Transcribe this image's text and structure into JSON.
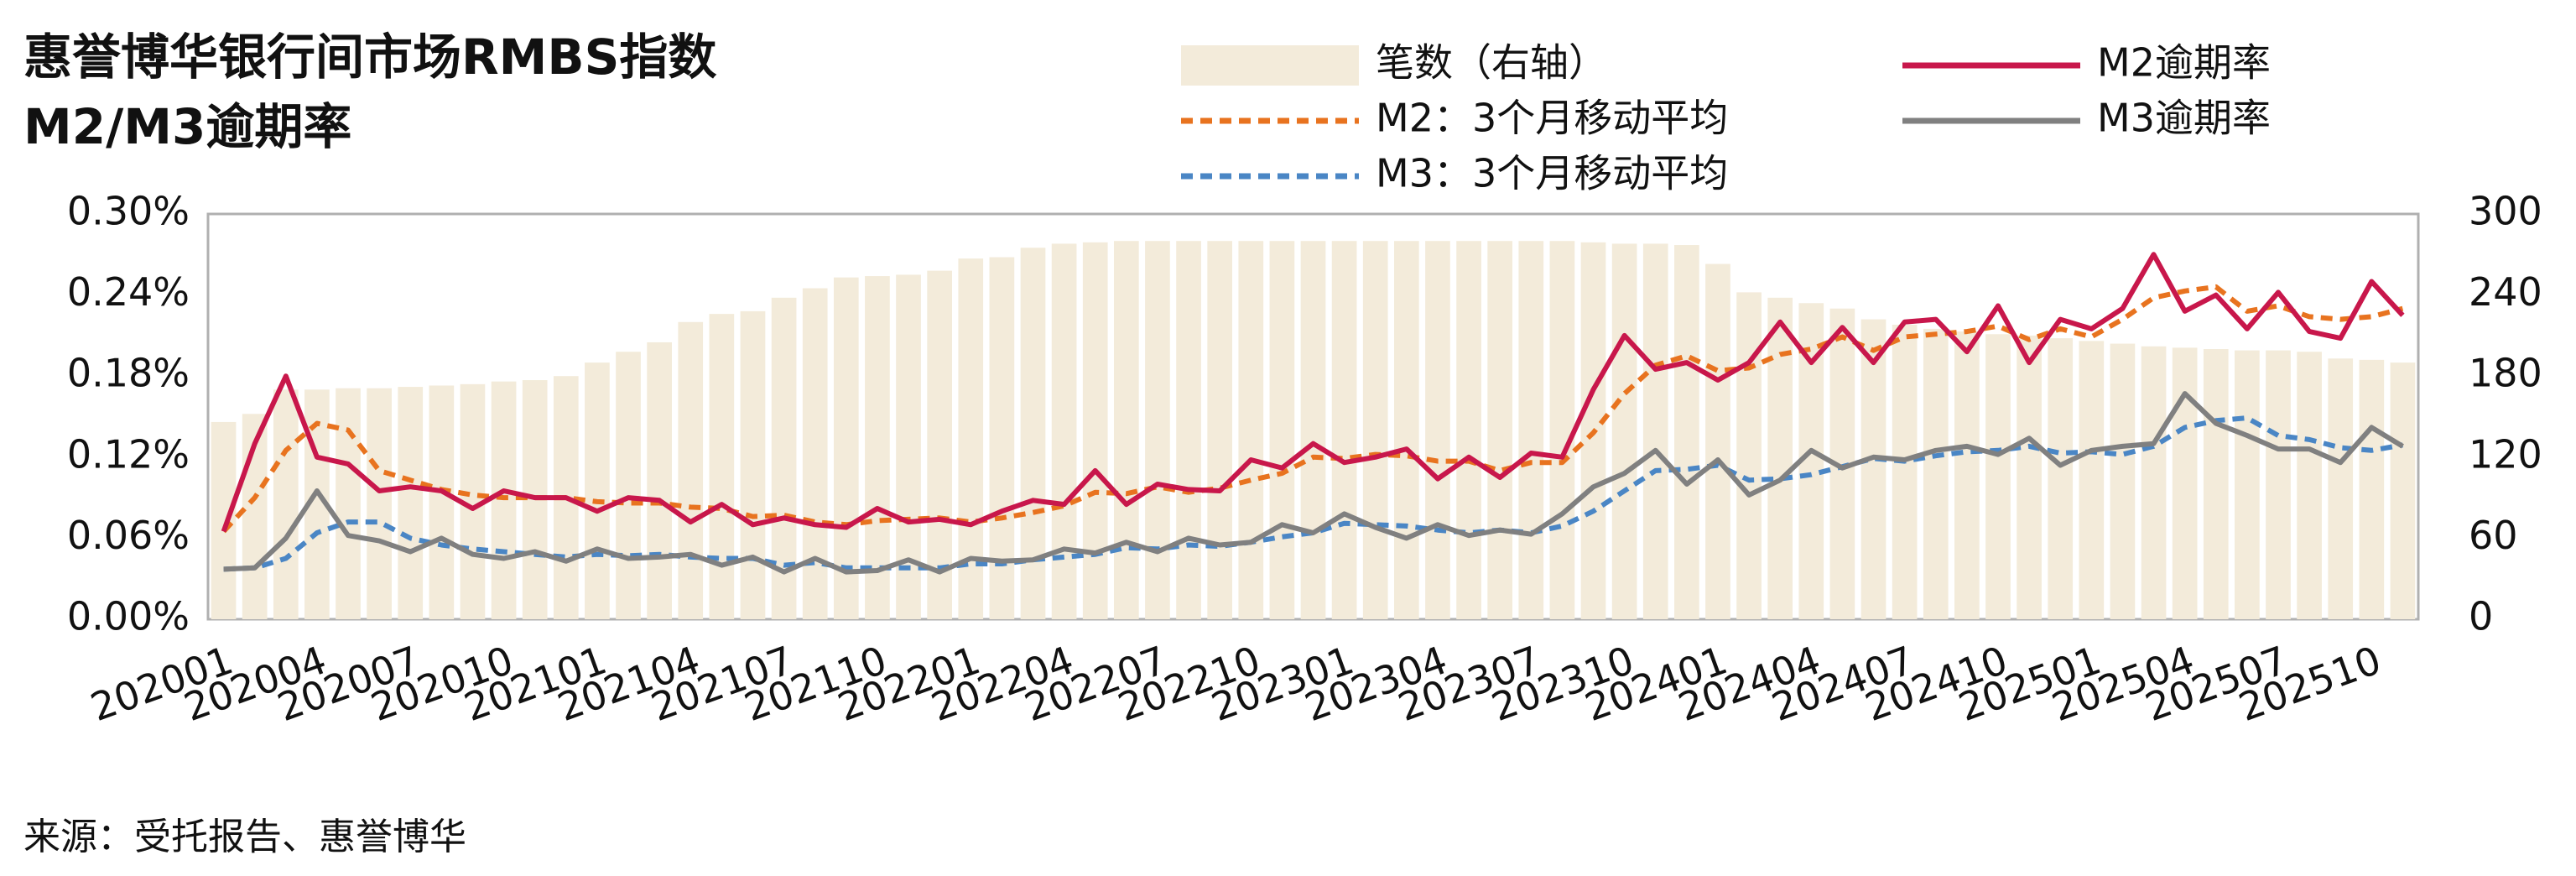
{
  "chart_data": {
    "type": "bar",
    "title": "惠誉博华银行间市场RMBS指数",
    "subtitle": "M2/M3逾期率",
    "source": "来源：受托报告、惠誉博华",
    "categories": [
      "202001",
      null,
      null,
      "202004",
      null,
      null,
      "202007",
      null,
      null,
      "202010",
      null,
      null,
      "202101",
      null,
      null,
      "202104",
      null,
      null,
      "202107",
      null,
      null,
      "202110",
      null,
      null,
      "202201",
      null,
      null,
      "202204",
      null,
      null,
      "202207",
      null,
      null,
      "202210",
      null,
      null,
      "202301",
      null,
      null,
      "202304",
      null,
      null,
      "202307",
      null,
      null,
      "202310",
      null,
      null,
      "202401",
      null,
      null,
      "202404",
      null,
      null,
      "202407",
      null,
      null,
      "202410",
      null,
      null,
      "202501",
      null,
      null,
      "202504",
      null,
      null,
      "202507",
      null,
      null,
      "202510",
      null
    ],
    "series": [
      {
        "name": "笔数（右轴）",
        "type": "bar",
        "axis": "y2",
        "color": "#f3ebda",
        "values": [
          146,
          152,
          170,
          170,
          171,
          171,
          172,
          173,
          174,
          176,
          177,
          180,
          190,
          198,
          205,
          220,
          226,
          228,
          238,
          245,
          253,
          254,
          255,
          258,
          267,
          268,
          275,
          278,
          279,
          280,
          280,
          280,
          280,
          280,
          280,
          280,
          280,
          280,
          280,
          280,
          280,
          280,
          280,
          280,
          279,
          278,
          278,
          277,
          263,
          242,
          238,
          234,
          230,
          222,
          218,
          215,
          213,
          211,
          210,
          208,
          206,
          204,
          202,
          201,
          200,
          199,
          199,
          198,
          193,
          192,
          190
        ]
      },
      {
        "name": "M2：3个月移动平均",
        "type": "line",
        "dash": true,
        "color": "#e8731f",
        "values": [
          0.065,
          0.09,
          0.125,
          0.145,
          0.14,
          0.11,
          0.103,
          0.096,
          0.092,
          0.09,
          0.09,
          0.09,
          0.087,
          0.086,
          0.086,
          0.083,
          0.082,
          0.076,
          0.077,
          0.072,
          0.07,
          0.073,
          0.074,
          0.075,
          0.072,
          0.075,
          0.079,
          0.084,
          0.094,
          0.093,
          0.098,
          0.094,
          0.097,
          0.103,
          0.108,
          0.12,
          0.119,
          0.122,
          0.121,
          0.117,
          0.117,
          0.11,
          0.116,
          0.116,
          0.138,
          0.167,
          0.188,
          0.195,
          0.184,
          0.186,
          0.196,
          0.2,
          0.209,
          0.199,
          0.209,
          0.211,
          0.213,
          0.217,
          0.207,
          0.215,
          0.209,
          0.222,
          0.238,
          0.243,
          0.246,
          0.228,
          0.232,
          0.224,
          0.222,
          0.224,
          0.23
        ]
      },
      {
        "name": "M3：3个月移动平均",
        "type": "line",
        "dash": true,
        "color": "#4a86c5",
        "values": [
          0.037,
          0.038,
          0.045,
          0.064,
          0.072,
          0.072,
          0.06,
          0.055,
          0.052,
          0.05,
          0.048,
          0.046,
          0.048,
          0.047,
          0.048,
          0.046,
          0.045,
          0.045,
          0.04,
          0.042,
          0.038,
          0.038,
          0.038,
          0.038,
          0.041,
          0.041,
          0.044,
          0.046,
          0.048,
          0.053,
          0.052,
          0.055,
          0.054,
          0.057,
          0.061,
          0.064,
          0.071,
          0.07,
          0.069,
          0.066,
          0.064,
          0.066,
          0.064,
          0.069,
          0.08,
          0.095,
          0.11,
          0.111,
          0.114,
          0.103,
          0.104,
          0.107,
          0.113,
          0.119,
          0.117,
          0.121,
          0.124,
          0.125,
          0.128,
          0.123,
          0.124,
          0.122,
          0.128,
          0.142,
          0.147,
          0.149,
          0.136,
          0.133,
          0.127,
          0.125,
          0.129
        ]
      },
      {
        "name": "M2逾期率",
        "type": "line",
        "color": "#c8174b",
        "values": [
          0.065,
          0.13,
          0.18,
          0.12,
          0.115,
          0.095,
          0.098,
          0.095,
          0.082,
          0.095,
          0.09,
          0.09,
          0.08,
          0.09,
          0.088,
          0.072,
          0.085,
          0.07,
          0.075,
          0.07,
          0.068,
          0.082,
          0.072,
          0.074,
          0.07,
          0.08,
          0.088,
          0.085,
          0.11,
          0.085,
          0.1,
          0.096,
          0.095,
          0.118,
          0.112,
          0.13,
          0.116,
          0.12,
          0.126,
          0.104,
          0.12,
          0.105,
          0.123,
          0.12,
          0.17,
          0.21,
          0.185,
          0.19,
          0.177,
          0.19,
          0.22,
          0.19,
          0.216,
          0.19,
          0.22,
          0.222,
          0.198,
          0.232,
          0.19,
          0.222,
          0.215,
          0.23,
          0.27,
          0.228,
          0.24,
          0.215,
          0.242,
          0.213,
          0.208,
          0.25,
          0.225
        ]
      },
      {
        "name": "M3逾期率",
        "type": "line",
        "color": "#808080",
        "values": [
          0.037,
          0.038,
          0.06,
          0.095,
          0.062,
          0.058,
          0.05,
          0.06,
          0.048,
          0.045,
          0.05,
          0.043,
          0.052,
          0.045,
          0.046,
          0.048,
          0.04,
          0.046,
          0.035,
          0.045,
          0.035,
          0.036,
          0.044,
          0.035,
          0.045,
          0.043,
          0.044,
          0.052,
          0.049,
          0.057,
          0.05,
          0.06,
          0.055,
          0.057,
          0.07,
          0.064,
          0.078,
          0.068,
          0.06,
          0.07,
          0.062,
          0.066,
          0.063,
          0.078,
          0.098,
          0.108,
          0.125,
          0.1,
          0.118,
          0.092,
          0.103,
          0.125,
          0.112,
          0.12,
          0.118,
          0.125,
          0.128,
          0.122,
          0.134,
          0.114,
          0.125,
          0.128,
          0.13,
          0.167,
          0.145,
          0.136,
          0.126,
          0.126,
          0.116,
          0.142,
          0.128
        ]
      }
    ],
    "ylim": [
      0,
      0.3
    ],
    "yticks": [
      {
        "value": 0,
        "label": "0.00%"
      },
      {
        "value": 0.06,
        "label": "0.06%"
      },
      {
        "value": 0.12,
        "label": "0.12%"
      },
      {
        "value": 0.18,
        "label": "0.18%"
      },
      {
        "value": 0.24,
        "label": "0.24%"
      },
      {
        "value": 0.3,
        "label": "0.30%"
      }
    ],
    "y2lim": [
      0,
      300
    ],
    "y2ticks": [
      0,
      60,
      120,
      180,
      240,
      300
    ],
    "grid": false
  }
}
